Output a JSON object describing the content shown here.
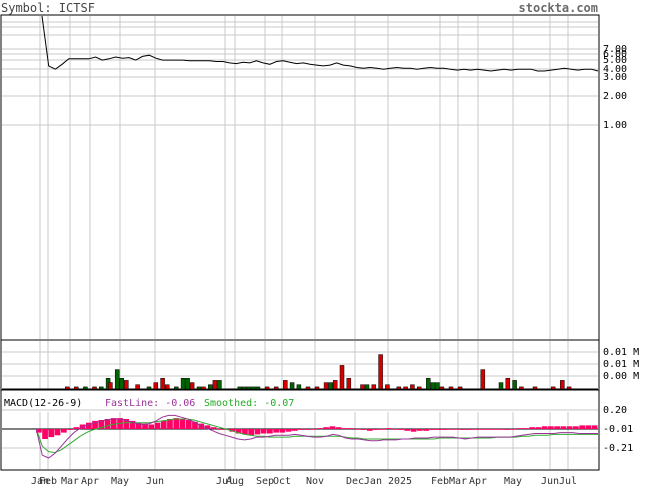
{
  "header": {
    "symbol_label": "Symbol: ICTSF",
    "site": "stockta.com"
  },
  "macd_legend": {
    "title": "MACD(12-26-9)",
    "fast": "FastLine: -0.06",
    "smoothed": "Smoothed: -0.07"
  },
  "colors": {
    "price_line": "#000000",
    "grid": "#c8c8c8",
    "volume_up": "#006400",
    "volume_down": "#d40000",
    "macd_hist": "#ff0066",
    "macd_fast": "#993399",
    "macd_smoothed": "#33aa33",
    "title_purple": "#993399",
    "title_green": "#22aa22"
  },
  "chart_data": [
    {
      "type": "line",
      "panel": "price",
      "scale": "log",
      "y_ticks": [
        "7.00",
        "6.00",
        "5.00",
        "4.00",
        "3.00",
        "2.00",
        "1.00"
      ],
      "x_ticks": [
        "Jan",
        "Feb",
        "Mar",
        "Apr",
        "May",
        "Jun",
        "Jul",
        "Aug",
        "Sep",
        "Oct",
        "Nov",
        "Dec",
        "Jan 2025",
        "Feb",
        "Mar",
        "Apr",
        "May",
        "Jun",
        "Jul"
      ],
      "series": [
        {
          "values": [
            40,
            4.2,
            3.8,
            4.4,
            5.2,
            5.2,
            5.2,
            5.2,
            5.5,
            5.0,
            5.2,
            5.5,
            5.3,
            5.4,
            5.0,
            5.6,
            5.8,
            5.3,
            5.0,
            5.0,
            5.0,
            5.0,
            4.9,
            4.9,
            4.9,
            4.9,
            4.8,
            4.8,
            4.6,
            4.5,
            4.7,
            4.6,
            4.9,
            4.6,
            4.4,
            4.8,
            4.9,
            4.7,
            4.5,
            4.6,
            4.4,
            4.3,
            4.2,
            4.3,
            4.6,
            4.3,
            4.2,
            4.0,
            3.9,
            4.0,
            3.9,
            3.8,
            3.9,
            4.0,
            3.9,
            3.9,
            3.8,
            3.9,
            4.0,
            3.9,
            3.9,
            3.8,
            3.7,
            3.8,
            3.7,
            3.8,
            3.7,
            3.6,
            3.7,
            3.8,
            3.7,
            3.8,
            3.8,
            3.8,
            3.6,
            3.6,
            3.7,
            3.8,
            3.9,
            3.8,
            3.7,
            3.8,
            3.8,
            3.6
          ]
        }
      ]
    },
    {
      "type": "bar",
      "panel": "volume",
      "y_ticks": [
        "0.01 M",
        "0.01 M",
        "0.00 M"
      ],
      "bars": [
        {
          "x": 0.06,
          "v": 0.05,
          "dir": "down"
        },
        {
          "x": 0.08,
          "v": 0.05,
          "dir": "down"
        },
        {
          "x": 0.1,
          "v": 0.05,
          "dir": "up"
        },
        {
          "x": 0.12,
          "v": 0.05,
          "dir": "down"
        },
        {
          "x": 0.135,
          "v": 0.05,
          "dir": "up"
        },
        {
          "x": 0.15,
          "v": 0.25,
          "dir": "up"
        },
        {
          "x": 0.155,
          "v": 0.15,
          "dir": "down"
        },
        {
          "x": 0.17,
          "v": 0.45,
          "dir": "up"
        },
        {
          "x": 0.18,
          "v": 0.25,
          "dir": "up"
        },
        {
          "x": 0.19,
          "v": 0.2,
          "dir": "down"
        },
        {
          "x": 0.215,
          "v": 0.1,
          "dir": "down"
        },
        {
          "x": 0.24,
          "v": 0.05,
          "dir": "up"
        },
        {
          "x": 0.255,
          "v": 0.15,
          "dir": "down"
        },
        {
          "x": 0.27,
          "v": 0.25,
          "dir": "down"
        },
        {
          "x": 0.28,
          "v": 0.1,
          "dir": "down"
        },
        {
          "x": 0.3,
          "v": 0.05,
          "dir": "up"
        },
        {
          "x": 0.315,
          "v": 0.25,
          "dir": "up"
        },
        {
          "x": 0.325,
          "v": 0.25,
          "dir": "up"
        },
        {
          "x": 0.335,
          "v": 0.15,
          "dir": "down"
        },
        {
          "x": 0.35,
          "v": 0.05,
          "dir": "up"
        },
        {
          "x": 0.36,
          "v": 0.05,
          "dir": "down"
        },
        {
          "x": 0.375,
          "v": 0.1,
          "dir": "up"
        },
        {
          "x": 0.385,
          "v": 0.2,
          "dir": "down"
        },
        {
          "x": 0.395,
          "v": 0.2,
          "dir": "up"
        },
        {
          "x": 0.44,
          "v": 0.05,
          "dir": "up"
        },
        {
          "x": 0.45,
          "v": 0.05,
          "dir": "up"
        },
        {
          "x": 0.46,
          "v": 0.05,
          "dir": "up"
        },
        {
          "x": 0.47,
          "v": 0.05,
          "dir": "up"
        },
        {
          "x": 0.48,
          "v": 0.05,
          "dir": "up"
        },
        {
          "x": 0.5,
          "v": 0.05,
          "dir": "down"
        },
        {
          "x": 0.52,
          "v": 0.05,
          "dir": "down"
        },
        {
          "x": 0.54,
          "v": 0.2,
          "dir": "down"
        },
        {
          "x": 0.555,
          "v": 0.15,
          "dir": "up"
        },
        {
          "x": 0.57,
          "v": 0.1,
          "dir": "up"
        },
        {
          "x": 0.59,
          "v": 0.05,
          "dir": "down"
        },
        {
          "x": 0.61,
          "v": 0.05,
          "dir": "down"
        },
        {
          "x": 0.63,
          "v": 0.15,
          "dir": "down"
        },
        {
          "x": 0.64,
          "v": 0.15,
          "dir": "up"
        },
        {
          "x": 0.65,
          "v": 0.2,
          "dir": "down"
        },
        {
          "x": 0.665,
          "v": 0.55,
          "dir": "down"
        },
        {
          "x": 0.68,
          "v": 0.25,
          "dir": "down"
        },
        {
          "x": 0.71,
          "v": 0.1,
          "dir": "down"
        },
        {
          "x": 0.72,
          "v": 0.1,
          "dir": "up"
        },
        {
          "x": 0.735,
          "v": 0.1,
          "dir": "down"
        },
        {
          "x": 0.75,
          "v": 0.8,
          "dir": "down"
        },
        {
          "x": 0.765,
          "v": 0.1,
          "dir": "down"
        },
        {
          "x": 0.79,
          "v": 0.05,
          "dir": "down"
        },
        {
          "x": 0.805,
          "v": 0.05,
          "dir": "down"
        },
        {
          "x": 0.82,
          "v": 0.1,
          "dir": "down"
        },
        {
          "x": 0.835,
          "v": 0.05,
          "dir": "down"
        },
        {
          "x": 0.855,
          "v": 0.25,
          "dir": "up"
        },
        {
          "x": 0.865,
          "v": 0.15,
          "dir": "up"
        },
        {
          "x": 0.875,
          "v": 0.15,
          "dir": "up"
        },
        {
          "x": 0.885,
          "v": 0.05,
          "dir": "down"
        },
        {
          "x": 0.905,
          "v": 0.05,
          "dir": "down"
        },
        {
          "x": 0.925,
          "v": 0.05,
          "dir": "down"
        },
        {
          "x": 0.975,
          "v": 0.45,
          "dir": "down"
        },
        {
          "x": 1.015,
          "v": 0.15,
          "dir": "up"
        },
        {
          "x": 1.03,
          "v": 0.25,
          "dir": "down"
        },
        {
          "x": 1.045,
          "v": 0.2,
          "dir": "up"
        },
        {
          "x": 1.06,
          "v": 0.05,
          "dir": "down"
        },
        {
          "x": 1.09,
          "v": 0.05,
          "dir": "down"
        },
        {
          "x": 1.13,
          "v": 0.05,
          "dir": "down"
        },
        {
          "x": 1.15,
          "v": 0.2,
          "dir": "down"
        },
        {
          "x": 1.165,
          "v": 0.05,
          "dir": "down"
        }
      ]
    },
    {
      "type": "line",
      "panel": "macd",
      "y_ticks": [
        "0.20",
        "-0.01",
        "-0.21"
      ],
      "histogram": [
        -0.05,
        -0.12,
        -0.1,
        -0.08,
        -0.05,
        -0.02,
        0.01,
        0.04,
        0.06,
        0.08,
        0.09,
        0.1,
        0.11,
        0.11,
        0.1,
        0.08,
        0.06,
        0.05,
        0.04,
        0.06,
        0.08,
        0.1,
        0.11,
        0.1,
        0.09,
        0.07,
        0.05,
        0.03,
        0.01,
        -0.01,
        -0.02,
        -0.04,
        -0.06,
        -0.07,
        -0.08,
        -0.07,
        -0.06,
        -0.06,
        -0.05,
        -0.05,
        -0.04,
        -0.03,
        -0.02,
        -0.02,
        -0.01,
        0.0,
        0.01,
        0.02,
        0.01,
        0.0,
        0.0,
        -0.01,
        -0.02,
        -0.03,
        -0.02,
        -0.01,
        0.0,
        -0.01,
        -0.02,
        -0.03,
        -0.04,
        -0.03,
        -0.03,
        -0.02,
        -0.02,
        -0.02,
        -0.01,
        -0.01,
        -0.02,
        -0.02,
        -0.01,
        -0.01,
        -0.01,
        -0.01,
        -0.01,
        -0.02,
        -0.01,
        0.0,
        0.0,
        0.01,
        0.01,
        0.02,
        0.02,
        0.02,
        0.02,
        0.02,
        0.02,
        0.03,
        0.03,
        0.03
      ],
      "fast": [
        0.0,
        -0.3,
        -0.33,
        -0.28,
        -0.2,
        -0.12,
        -0.05,
        0.0,
        0.03,
        0.05,
        0.07,
        0.09,
        0.1,
        0.1,
        0.09,
        0.07,
        0.05,
        0.04,
        0.05,
        0.08,
        0.12,
        0.14,
        0.14,
        0.12,
        0.1,
        0.07,
        0.03,
        0.0,
        -0.03,
        -0.06,
        -0.08,
        -0.1,
        -0.12,
        -0.13,
        -0.12,
        -0.1,
        -0.1,
        -0.09,
        -0.08,
        -0.08,
        -0.08,
        -0.07,
        -0.08,
        -0.09,
        -0.1,
        -0.1,
        -0.09,
        -0.07,
        -0.08,
        -0.11,
        -0.12,
        -0.12,
        -0.13,
        -0.14,
        -0.14,
        -0.13,
        -0.13,
        -0.13,
        -0.12,
        -0.12,
        -0.11,
        -0.11,
        -0.11,
        -0.1,
        -0.1,
        -0.1,
        -0.1,
        -0.11,
        -0.12,
        -0.11,
        -0.1,
        -0.1,
        -0.1,
        -0.1,
        -0.1,
        -0.1,
        -0.09,
        -0.08,
        -0.07,
        -0.06,
        -0.06,
        -0.06,
        -0.06,
        -0.05,
        -0.05,
        -0.05,
        -0.06,
        -0.06,
        -0.06,
        -0.06
      ],
      "smoothed": [
        0.0,
        -0.2,
        -0.26,
        -0.27,
        -0.24,
        -0.19,
        -0.14,
        -0.09,
        -0.05,
        -0.02,
        0.0,
        0.02,
        0.04,
        0.05,
        0.06,
        0.06,
        0.06,
        0.06,
        0.06,
        0.07,
        0.08,
        0.09,
        0.1,
        0.1,
        0.1,
        0.09,
        0.07,
        0.05,
        0.03,
        0.01,
        -0.01,
        -0.03,
        -0.05,
        -0.07,
        -0.08,
        -0.09,
        -0.09,
        -0.1,
        -0.1,
        -0.1,
        -0.1,
        -0.09,
        -0.09,
        -0.09,
        -0.09,
        -0.09,
        -0.09,
        -0.09,
        -0.09,
        -0.1,
        -0.11,
        -0.11,
        -0.12,
        -0.12,
        -0.12,
        -0.12,
        -0.12,
        -0.12,
        -0.12,
        -0.12,
        -0.12,
        -0.12,
        -0.12,
        -0.12,
        -0.11,
        -0.11,
        -0.11,
        -0.11,
        -0.11,
        -0.11,
        -0.11,
        -0.11,
        -0.11,
        -0.1,
        -0.1,
        -0.1,
        -0.1,
        -0.09,
        -0.09,
        -0.08,
        -0.08,
        -0.08,
        -0.07,
        -0.07,
        -0.07,
        -0.07,
        -0.07,
        -0.07,
        -0.07,
        -0.07
      ]
    }
  ]
}
